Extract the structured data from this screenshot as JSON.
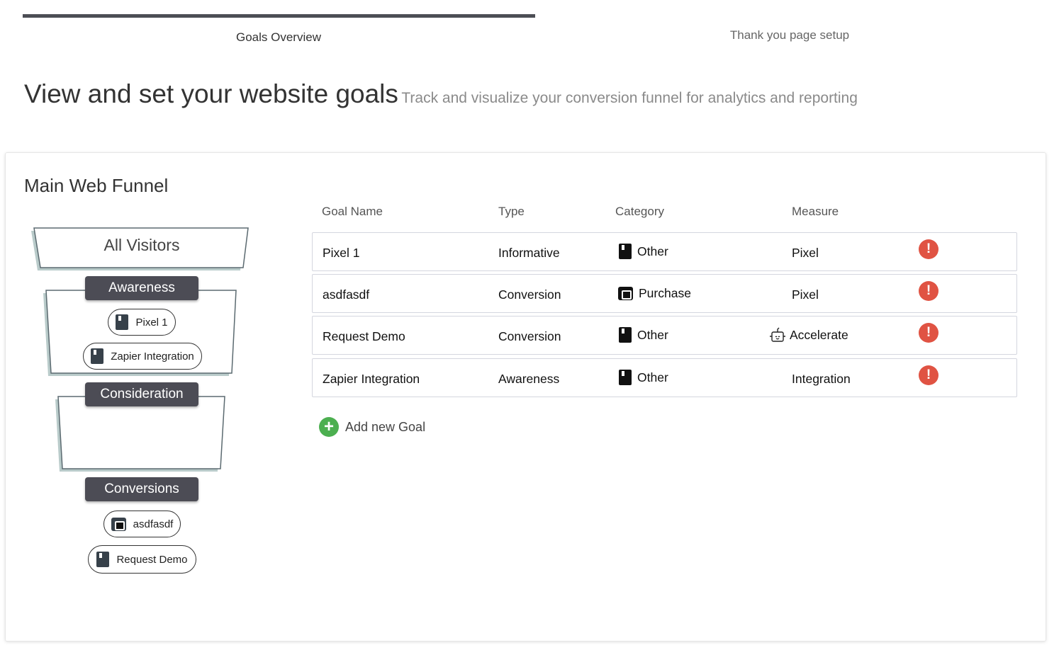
{
  "tabs": [
    {
      "label": "Goals Overview",
      "active": true
    },
    {
      "label": "Thank you page setup",
      "active": false
    }
  ],
  "header": {
    "title": "View and set your website goals",
    "subtitle": "Track and visualize your conversion funnel for analytics and reporting"
  },
  "funnel": {
    "title": "Main Web Funnel",
    "top": "All Visitors",
    "stages": [
      {
        "label": "Awareness",
        "goals": [
          "Pixel 1",
          "Zapier Integration"
        ]
      },
      {
        "label": "Consideration",
        "goals": []
      },
      {
        "label": "Conversions",
        "goals": [
          "asdfasdf",
          "Request Demo"
        ]
      }
    ]
  },
  "table": {
    "headers": [
      "Goal Name",
      "Type",
      "Category",
      "Measure"
    ],
    "rows": [
      {
        "name": "Pixel 1",
        "type": "Informative",
        "category": "Other",
        "category_icon": "bookmark-icon",
        "measure": "Pixel",
        "status": "alert"
      },
      {
        "name": "asdfasdf",
        "type": "Conversion",
        "category": "Purchase",
        "category_icon": "wallet-icon",
        "measure": "Pixel",
        "status": "alert"
      },
      {
        "name": "Request Demo",
        "type": "Conversion",
        "category": "Other",
        "category_icon": "bookmark-icon",
        "measure": "Accelerate",
        "measure_icon": "robot-icon",
        "status": "alert"
      },
      {
        "name": "Zapier Integration",
        "type": "Awareness",
        "category": "Other",
        "category_icon": "bookmark-icon",
        "measure": "Integration",
        "status": "alert"
      }
    ]
  },
  "add_goal": "Add new Goal",
  "colors": {
    "alert": "#e05343",
    "add": "#4caf50",
    "stage": "#4c4c55",
    "tab_active": "#4c4e55"
  }
}
